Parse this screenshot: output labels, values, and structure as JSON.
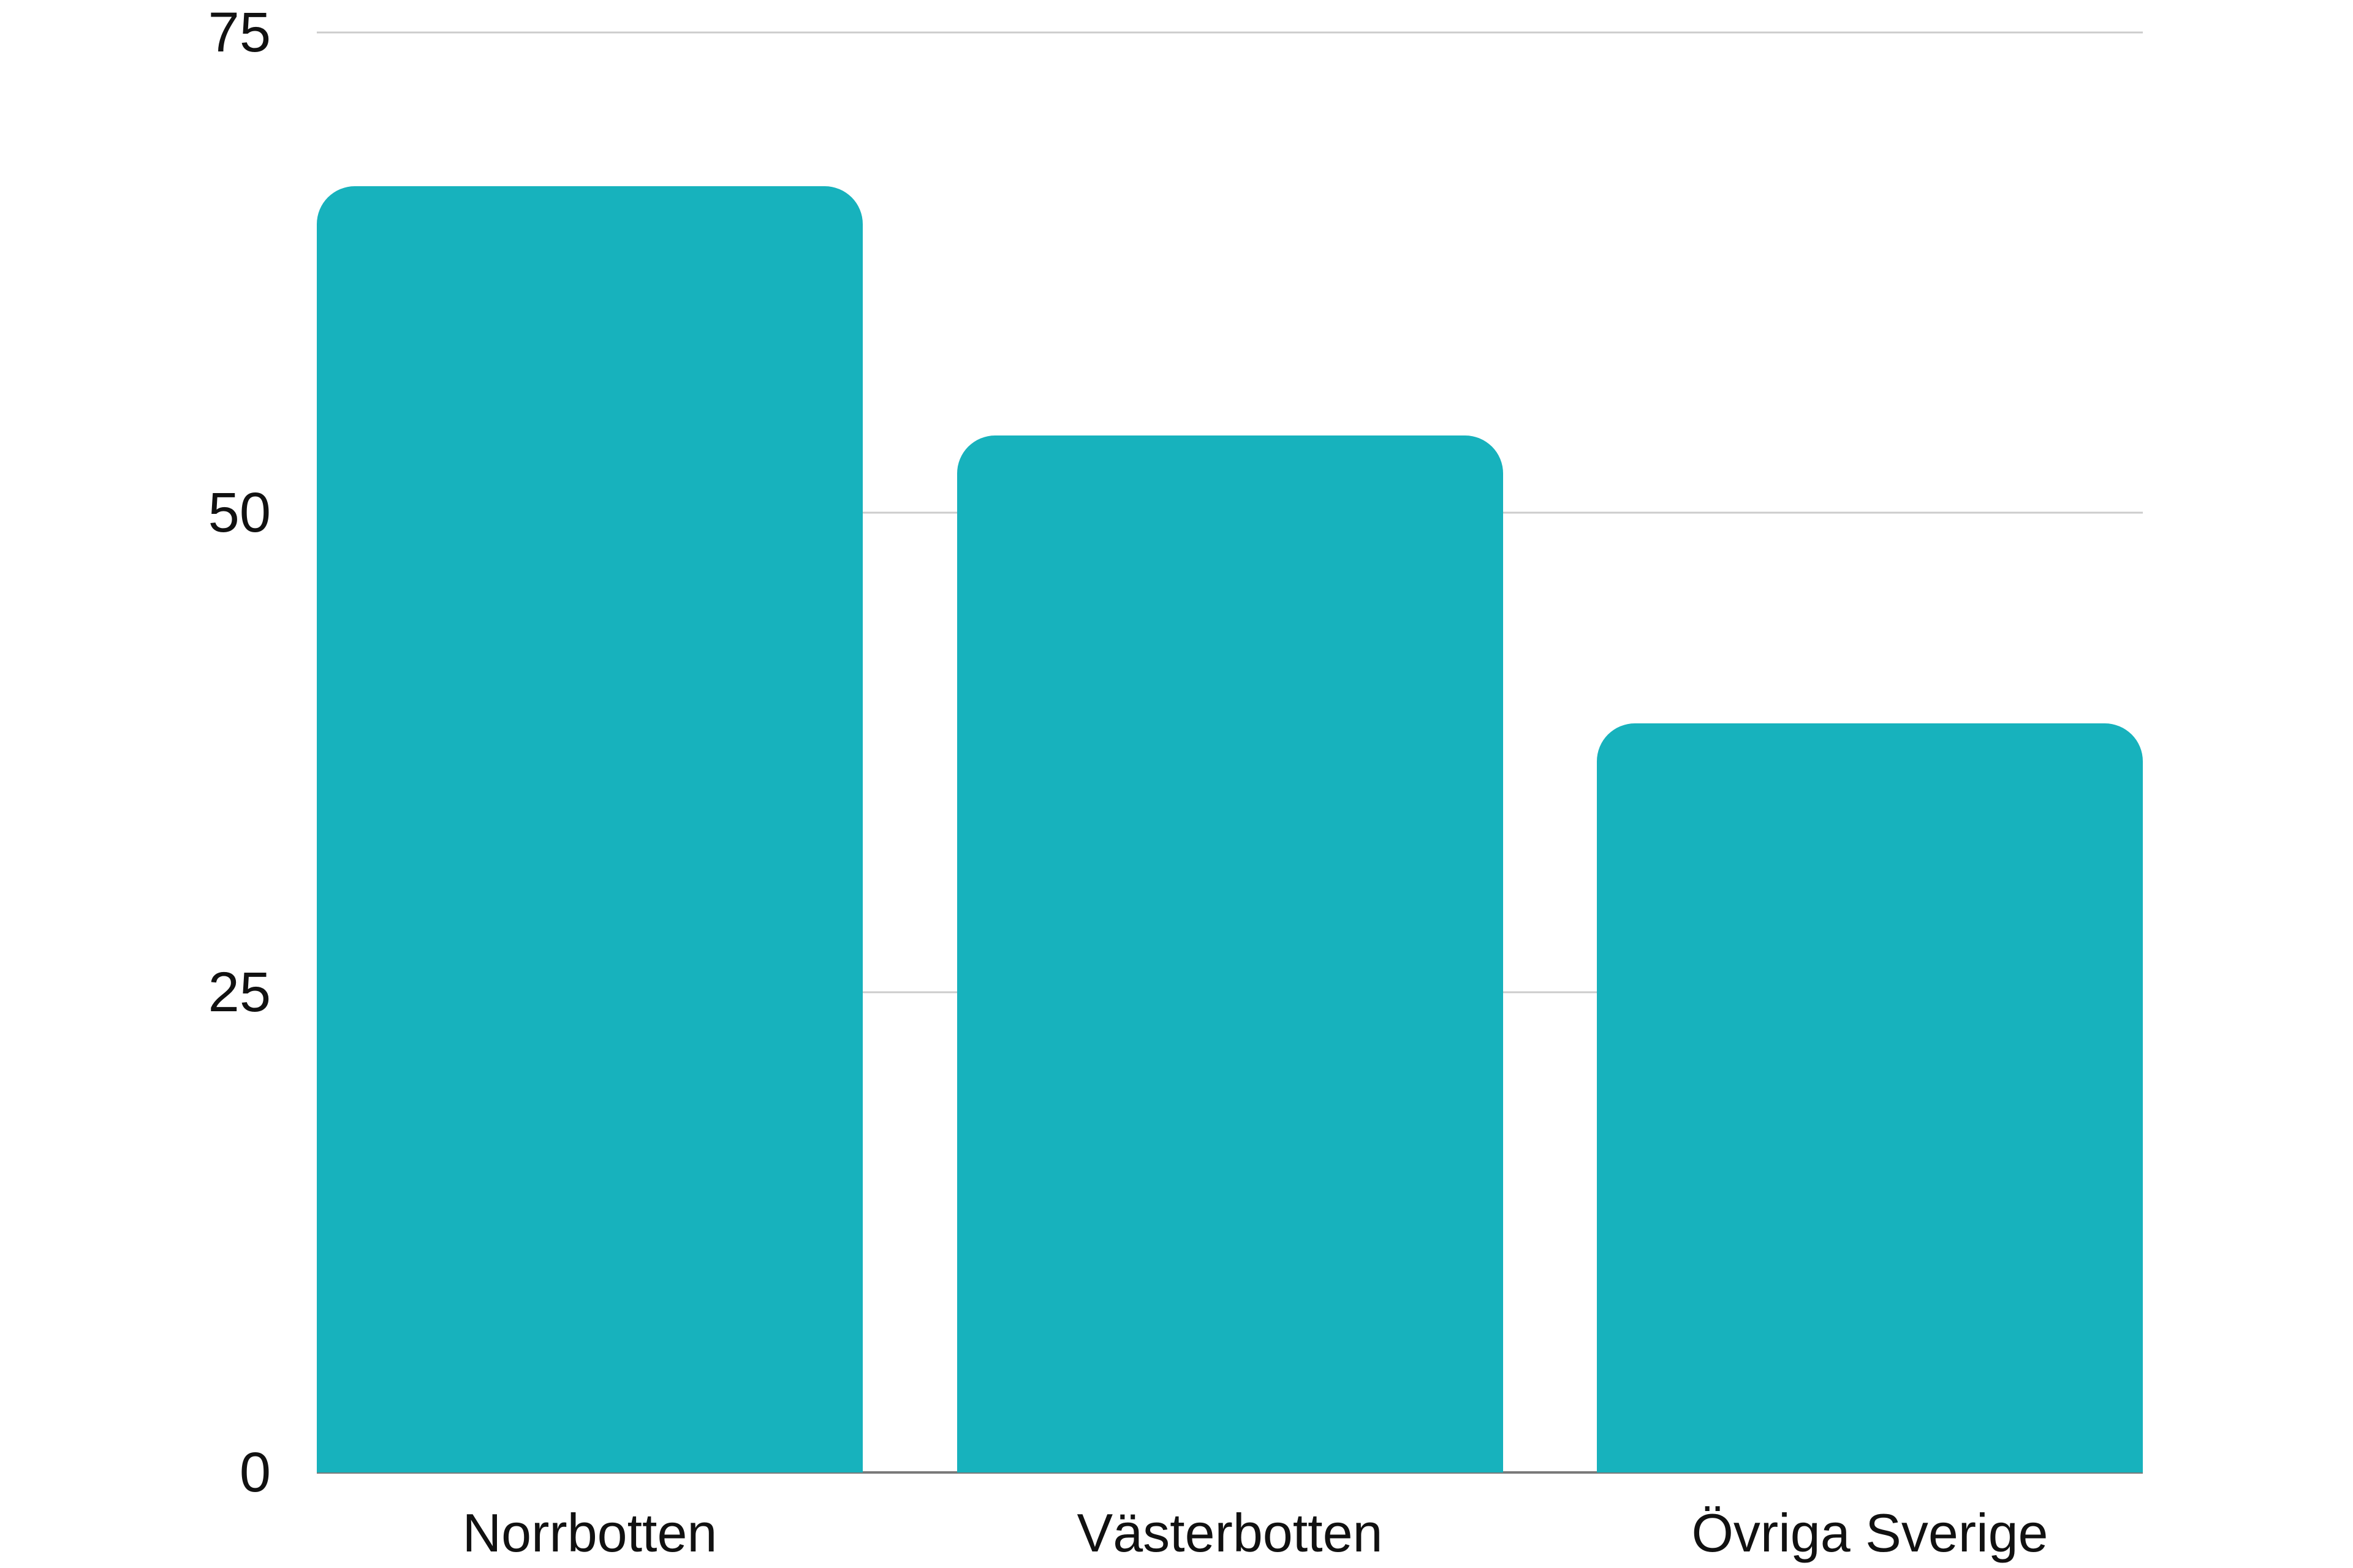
{
  "chart_data": {
    "type": "bar",
    "categories": [
      "Norrbotten",
      "Västerbotten",
      "Övriga Sverige"
    ],
    "values": [
      67,
      54,
      39
    ],
    "title": "",
    "xlabel": "",
    "ylabel": "",
    "ylim": [
      0,
      75
    ],
    "y_ticks": [
      75,
      50,
      25,
      0
    ],
    "grid": true,
    "legend": "none",
    "bar_color": "#17b2bd"
  },
  "colors": {
    "background": "#ffffff",
    "gridline": "#cccccc",
    "zero_baseline": "#7a7a7a",
    "text": "#111111"
  }
}
